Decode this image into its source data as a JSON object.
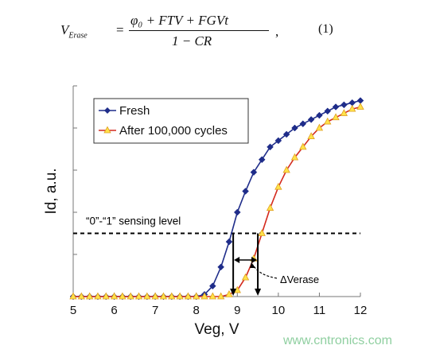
{
  "equation": {
    "lhs": "V",
    "lhs_sub": "Erase",
    "equals": "=",
    "numerator": "φ₀ + FTV + FGVt",
    "denominator": "1 − CR",
    "trailing": ",",
    "number": "(1)"
  },
  "chart_data": {
    "type": "line",
    "title": "",
    "xlabel": "Veg, V",
    "ylabel": "Id, a.u.",
    "xlim": [
      5,
      12
    ],
    "ylim": [
      0,
      1
    ],
    "x_ticks": [
      "5",
      "6",
      "7",
      "8",
      "9",
      "10",
      "11",
      "12"
    ],
    "grid": false,
    "legend_position": "top-left",
    "series": [
      {
        "name": "Fresh",
        "color": "#1f2d8a",
        "marker": "diamond",
        "x": [
          5.0,
          5.2,
          5.4,
          5.6,
          5.8,
          6.0,
          6.2,
          6.4,
          6.6,
          6.8,
          7.0,
          7.2,
          7.4,
          7.6,
          7.8,
          8.0,
          8.2,
          8.4,
          8.6,
          8.8,
          9.0,
          9.2,
          9.4,
          9.6,
          9.8,
          10.0,
          10.2,
          10.4,
          10.6,
          10.8,
          11.0,
          11.2,
          11.4,
          11.6,
          11.8,
          12.0
        ],
        "y": [
          0,
          0,
          0,
          0,
          0,
          0,
          0,
          0,
          0,
          0,
          0,
          0,
          0,
          0,
          0,
          0,
          0.01,
          0.05,
          0.14,
          0.26,
          0.4,
          0.5,
          0.59,
          0.65,
          0.71,
          0.74,
          0.77,
          0.8,
          0.82,
          0.84,
          0.86,
          0.88,
          0.9,
          0.91,
          0.92,
          0.93
        ]
      },
      {
        "name": "After 100,000 cycles",
        "color": "#d42a1e",
        "marker_color": "#ffe24a",
        "marker": "triangle",
        "x": [
          5.0,
          5.2,
          5.4,
          5.6,
          5.8,
          6.0,
          6.2,
          6.4,
          6.6,
          6.8,
          7.0,
          7.2,
          7.4,
          7.6,
          7.8,
          8.0,
          8.2,
          8.4,
          8.6,
          8.8,
          9.0,
          9.2,
          9.4,
          9.6,
          9.8,
          10.0,
          10.2,
          10.4,
          10.6,
          10.8,
          11.0,
          11.2,
          11.4,
          11.6,
          11.8,
          12.0
        ],
        "y": [
          0,
          0,
          0,
          0,
          0,
          0,
          0,
          0,
          0,
          0,
          0,
          0,
          0,
          0,
          0,
          0,
          0,
          0,
          0,
          0.01,
          0.03,
          0.09,
          0.18,
          0.3,
          0.42,
          0.52,
          0.6,
          0.66,
          0.71,
          0.76,
          0.8,
          0.83,
          0.85,
          0.87,
          0.89,
          0.9
        ]
      }
    ],
    "annotations": {
      "sensing_label": "“0”-“1” sensing level",
      "sensing_level_y": 0.3,
      "fresh_cross_x": 8.9,
      "cycled_cross_x": 9.5,
      "delta_label": "ΔVerase"
    }
  },
  "watermark": "www.cntronics.com"
}
